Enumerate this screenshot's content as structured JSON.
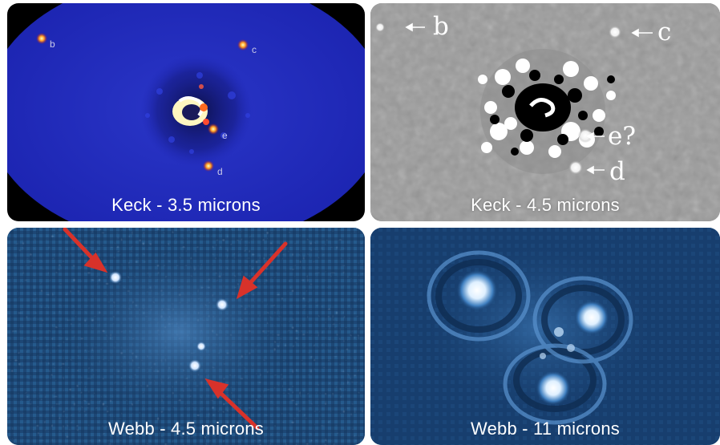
{
  "panels": {
    "keck35": {
      "caption": "Keck - 3.5 microns",
      "planets": {
        "b": "b",
        "c": "c",
        "e": "e",
        "d": "d"
      }
    },
    "keck45": {
      "caption": "Keck - 4.5 microns",
      "planets": {
        "b": "b",
        "c": "c",
        "e": "e?",
        "d": "d"
      }
    },
    "webb45": {
      "caption": "Webb - 4.5 microns"
    },
    "webb11": {
      "caption": "Webb - 11 microns"
    }
  },
  "colors": {
    "keck35_bg": "#1f28b8",
    "keck45_bg": "#9a9a9a",
    "webb45_bg": "#1d4775",
    "webb11_bg": "#173e6e",
    "arrow_red": "#d8322a"
  },
  "icons": {
    "arrow": "left-arrow-icon"
  }
}
